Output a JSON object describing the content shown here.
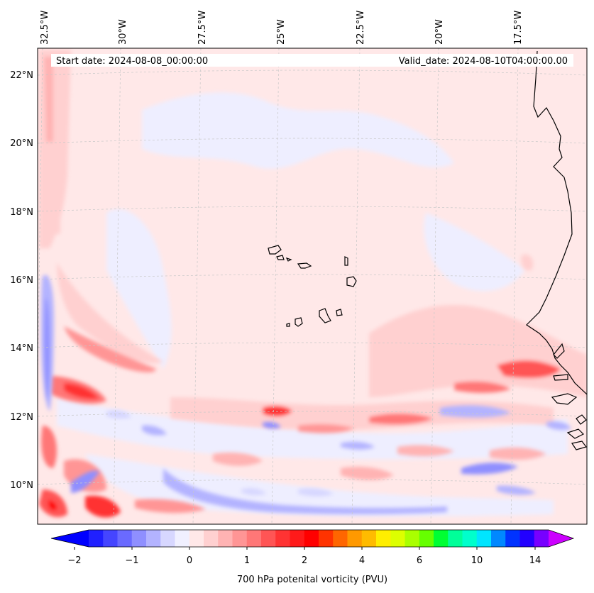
{
  "map": {
    "start_label": "Start date: 2024-08-08_00:00:00",
    "valid_label": "Valid_date: 2024-08-10T04:00:00.00",
    "lon_labels": [
      "32.5°W",
      "30°W",
      "27.5°W",
      "25°W",
      "22.5°W",
      "20°W",
      "17.5°W"
    ],
    "lat_labels": [
      "22°N",
      "20°N",
      "18°N",
      "16°N",
      "14°N",
      "12°N",
      "10°N"
    ],
    "background_color": "#ffe8e8",
    "coast_color": "#000000",
    "grid_color": "#c8c8c8"
  },
  "colorbar": {
    "label": "700 hPa potenital vorticity (PVU)",
    "ticks": [
      "−2",
      "−1",
      "0",
      "1",
      "2",
      "4",
      "6",
      "10",
      "14"
    ],
    "colors": [
      "#0000ff",
      "#2020ff",
      "#4545ff",
      "#6a6aff",
      "#8f8fff",
      "#b3b3ff",
      "#d7d7ff",
      "#f0f0ff",
      "#ffe8e8",
      "#ffd0d0",
      "#ffb3b3",
      "#ff9595",
      "#ff7777",
      "#ff5555",
      "#ff3333",
      "#ff1a1a",
      "#ff0000",
      "#ff3300",
      "#ff6600",
      "#ff9900",
      "#ffbb00",
      "#ffee00",
      "#ddff00",
      "#aaff00",
      "#66ff00",
      "#00ff33",
      "#00ff99",
      "#00ffcc",
      "#00e5ff",
      "#0088ff",
      "#0033ff",
      "#2200ff",
      "#7700ff",
      "#cc00ff"
    ]
  }
}
